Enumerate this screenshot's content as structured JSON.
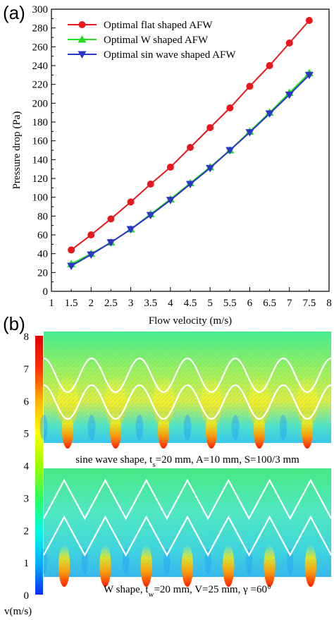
{
  "chart_data": [
    {
      "type": "line",
      "panel_label": "(a)",
      "title": "",
      "xlabel": "Flow velocity (m/s)",
      "ylabel": "Pressure drop (Pa)",
      "xlim": [
        1,
        8
      ],
      "ylim": [
        0,
        300
      ],
      "xticks": [
        "1",
        "1.5",
        "2",
        "2.5",
        "3",
        "3.5",
        "4",
        "4.5",
        "5",
        "5.5",
        "6",
        "6.5",
        "7",
        "7.5",
        "8"
      ],
      "yticks": [
        "0",
        "20",
        "40",
        "60",
        "80",
        "100",
        "120",
        "140",
        "160",
        "180",
        "200",
        "220",
        "240",
        "260",
        "280",
        "300"
      ],
      "grid": false,
      "legend_position": "top-left",
      "x": [
        1.5,
        2,
        2.5,
        3,
        3.5,
        4,
        4.5,
        5,
        5.5,
        6,
        6.5,
        7,
        7.5
      ],
      "series": [
        {
          "name": "Optimal flat shaped AFW",
          "color": "#e8191c",
          "marker": "circle",
          "values": [
            44,
            60,
            77,
            95,
            114,
            132,
            153,
            174,
            195,
            218,
            240,
            264,
            288
          ]
        },
        {
          "name": "Optimal W shaped AFW",
          "color": "#22dd22",
          "marker": "triangle-up",
          "values": [
            29,
            40,
            52,
            66,
            82,
            98,
            115,
            132,
            150,
            170,
            190,
            211,
            232
          ]
        },
        {
          "name": "Optimal sin wave shaped AFW",
          "color": "#2b35c6",
          "marker": "triangle-down",
          "values": [
            27,
            39,
            52,
            66,
            81,
            97,
            114,
            131,
            150,
            169,
            189,
            209,
            230
          ]
        }
      ]
    },
    {
      "type": "heatmap",
      "panel_label": "(b)",
      "colorbar": {
        "unit_label": "v(m/s)",
        "range": [
          0,
          8
        ],
        "ticks": [
          "0",
          "1",
          "2",
          "3",
          "4",
          "5",
          "6",
          "7",
          "8"
        ],
        "colors": [
          "#0a2cff",
          "#00b4ff",
          "#00ffe0",
          "#2cff5a",
          "#9cff00",
          "#ffff00",
          "#ffb000",
          "#ff3000",
          "#e00000"
        ]
      },
      "fields": [
        {
          "shape": "sine",
          "caption_pre": "sine wave shape, t",
          "caption_sub": "s",
          "caption_post": "=20 mm, A=10 mm, S=100/3 mm",
          "periods": 6
        },
        {
          "shape": "w",
          "caption_pre": "W shape, t",
          "caption_sub": "w",
          "caption_post": "=20 mm, V=25 mm, γ =60°",
          "periods": 7
        }
      ]
    }
  ]
}
